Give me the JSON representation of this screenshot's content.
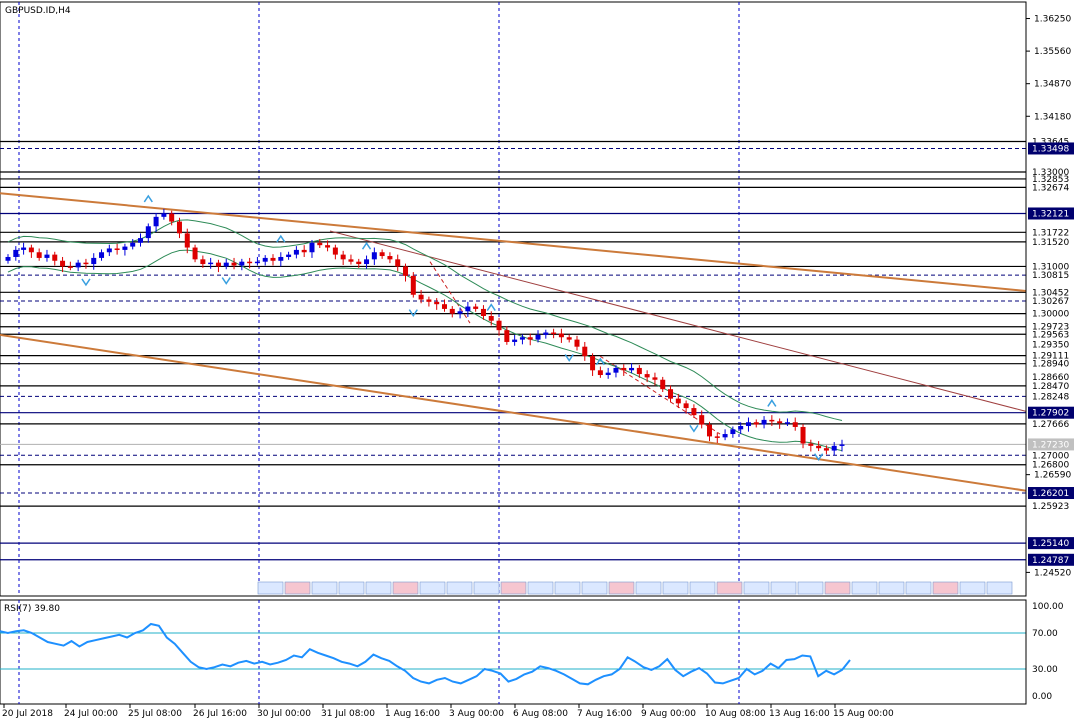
{
  "symbol": "GBPUSD.ID,H4",
  "chart_data": {
    "type": "candlestick",
    "title": "GBPUSD.ID,H4",
    "price_axis": {
      "range": [
        1.2402,
        1.366
      ],
      "ticks": [
        1.3625,
        1.3556,
        1.3487,
        1.3418,
        1.2659,
        1.2452
      ]
    },
    "x_tick_labels": [
      "20 Jul 2018",
      "24 Jul 00:00",
      "25 Jul 08:00",
      "26 Jul 16:00",
      "30 Jul 00:00",
      "31 Jul 08:00",
      "1 Aug 16:00",
      "3 Aug 00:00",
      "6 Aug 08:00",
      "7 Aug 16:00",
      "9 Aug 00:00",
      "10 Aug 08:00",
      "13 Aug 16:00",
      "15 Aug 00:00"
    ],
    "levels": [
      {
        "value": 1.33645,
        "label": "1.33645",
        "style": "solid"
      },
      {
        "value": 1.33498,
        "label": "1.33498",
        "style": "dash",
        "boxed": true
      },
      {
        "value": 1.33,
        "label": "1.33000",
        "style": "solid"
      },
      {
        "value": 1.32853,
        "label": "1.32853",
        "style": "solid"
      },
      {
        "value": 1.32674,
        "label": "1.32674",
        "style": "solid"
      },
      {
        "value": 1.32121,
        "label": "1.32121",
        "style": "solid",
        "boxed": true
      },
      {
        "value": 1.31722,
        "label": "1.31722",
        "style": "solid"
      },
      {
        "value": 1.3152,
        "label": "1.31520",
        "style": "solid"
      },
      {
        "value": 1.31,
        "label": "1.31000",
        "style": "solid"
      },
      {
        "value": 1.30815,
        "label": "1.30815",
        "style": "dash"
      },
      {
        "value": 1.30452,
        "label": "1.30452",
        "style": "solid"
      },
      {
        "value": 1.30267,
        "label": "1.30267",
        "style": "dash"
      },
      {
        "value": 1.3,
        "label": "1.30000",
        "style": "solid"
      },
      {
        "value": 1.29723,
        "label": "1.29723",
        "style": "solid"
      },
      {
        "value": 1.29563,
        "label": "1.29563",
        "style": "solid"
      },
      {
        "value": 1.2935,
        "label": "1.29350",
        "style": "none"
      },
      {
        "value": 1.29111,
        "label": "1.29111",
        "style": "solid"
      },
      {
        "value": 1.2894,
        "label": "1.28940",
        "style": "solid"
      },
      {
        "value": 1.2866,
        "label": "1.28660",
        "style": "none"
      },
      {
        "value": 1.2847,
        "label": "1.28470",
        "style": "solid"
      },
      {
        "value": 1.28248,
        "label": "1.28248",
        "style": "dash"
      },
      {
        "value": 1.27902,
        "label": "1.27902",
        "style": "solid",
        "boxed": true
      },
      {
        "value": 1.27666,
        "label": "1.27666",
        "style": "solid"
      },
      {
        "value": 1.2723,
        "label": "1.27230",
        "style": "current"
      },
      {
        "value": 1.27,
        "label": "1.27000",
        "style": "dash"
      },
      {
        "value": 1.268,
        "label": "1.26800",
        "style": "solid"
      },
      {
        "value": 1.26201,
        "label": "1.26201",
        "style": "dash",
        "boxed": true
      },
      {
        "value": 1.25923,
        "label": "1.25923",
        "style": "solid"
      },
      {
        "value": 1.2514,
        "label": "1.25140",
        "style": "solid",
        "boxed": true
      },
      {
        "value": 1.24787,
        "label": "1.24787",
        "style": "solid",
        "boxed": true
      }
    ],
    "last_price": 1.2723,
    "trendlines": [
      {
        "from": [
          0,
          1.3255
        ],
        "to": [
          1026,
          1.3048
        ]
      },
      {
        "from": [
          0,
          1.2955
        ],
        "to": [
          1026,
          1.2625
        ]
      }
    ],
    "closes": [
      1.312,
      1.3135,
      1.314,
      1.313,
      1.3118,
      1.3125,
      1.3112,
      1.31,
      1.3098,
      1.3108,
      1.3105,
      1.3118,
      1.313,
      1.3138,
      1.3135,
      1.3142,
      1.315,
      1.316,
      1.3185,
      1.3205,
      1.3212,
      1.3195,
      1.317,
      1.314,
      1.3115,
      1.3105,
      1.3108,
      1.31,
      1.3108,
      1.3102,
      1.311,
      1.3108,
      1.311,
      1.3118,
      1.3112,
      1.312,
      1.3125,
      1.3135,
      1.313,
      1.315,
      1.3145,
      1.314,
      1.3125,
      1.3115,
      1.311,
      1.3105,
      1.3115,
      1.313,
      1.3122,
      1.3115,
      1.31,
      1.308,
      1.304,
      1.303,
      1.3025,
      1.302,
      1.301,
      1.3,
      1.3005,
      1.3015,
      1.301,
      1.2995,
      1.2985,
      1.2965,
      1.294,
      1.2945,
      1.295,
      1.2945,
      1.2955,
      1.296,
      1.2958,
      1.295,
      1.2945,
      1.293,
      1.291,
      1.288,
      1.287,
      1.2875,
      1.2885,
      1.288,
      1.2885,
      1.2872,
      1.2865,
      1.286,
      1.284,
      1.282,
      1.281,
      1.28,
      1.2785,
      1.2765,
      1.274,
      1.2738,
      1.2745,
      1.2755,
      1.2762,
      1.277,
      1.2765,
      1.2775,
      1.2772,
      1.2768,
      1.277,
      1.276,
      1.2725,
      1.272,
      1.2715,
      1.271,
      1.272,
      1.2723
    ],
    "rsi": {
      "label": "RSI(7) 39.80",
      "ticks": [
        "100.00",
        "70.00",
        "30.00",
        "0.00"
      ],
      "levels": [
        70,
        30
      ],
      "current": 39.8,
      "values": [
        72,
        70,
        72,
        73,
        70,
        65,
        60,
        58,
        56,
        61,
        55,
        60,
        62,
        64,
        66,
        68,
        65,
        70,
        73,
        80,
        78,
        65,
        58,
        48,
        38,
        32,
        30,
        32,
        35,
        33,
        37,
        39,
        36,
        38,
        35,
        37,
        40,
        45,
        43,
        52,
        48,
        45,
        42,
        38,
        36,
        33,
        38,
        46,
        42,
        39,
        33,
        28,
        20,
        16,
        14,
        18,
        20,
        16,
        14,
        18,
        22,
        30,
        28,
        25,
        16,
        19,
        24,
        27,
        33,
        31,
        28,
        24,
        19,
        14,
        13,
        18,
        22,
        24,
        30,
        43,
        38,
        32,
        29,
        33,
        41,
        29,
        22,
        27,
        31,
        25,
        15,
        14,
        17,
        20,
        30,
        24,
        28,
        36,
        31,
        40,
        41,
        45,
        44,
        22,
        28,
        24,
        29,
        40
      ]
    }
  }
}
